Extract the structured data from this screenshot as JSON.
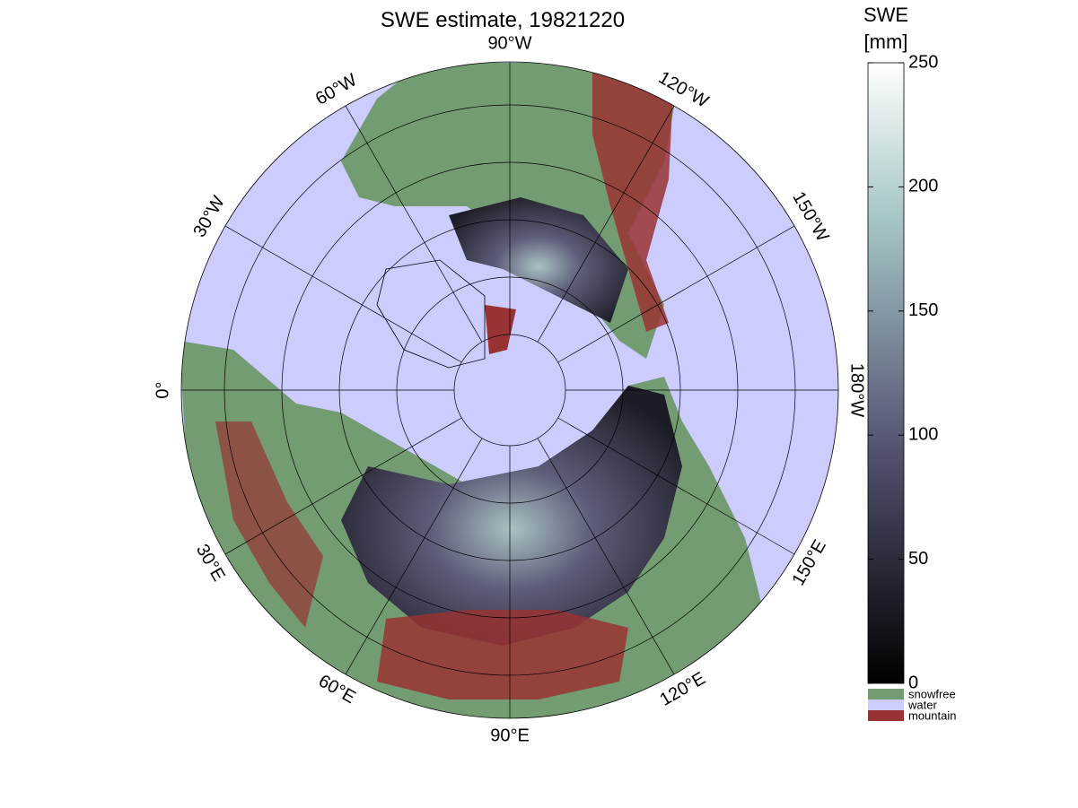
{
  "title": "SWE estimate, 19821220",
  "map": {
    "longitude_labels": [
      "0°",
      "30°W",
      "60°W",
      "90°W",
      "120°W",
      "150°W",
      "180°W",
      "150°E",
      "120°E",
      "90°E",
      "60°E",
      "30°E"
    ]
  },
  "colorbar": {
    "label": [
      "SWE",
      "[mm]"
    ],
    "lim": [
      0,
      250
    ],
    "ticks": [
      0,
      50,
      100,
      150,
      200,
      250
    ]
  },
  "legend": [
    {
      "name": "snowfree",
      "color": "#739c73"
    },
    {
      "name": "water",
      "color": "#ccccff"
    },
    {
      "name": "mountain",
      "color": "#993333"
    }
  ]
}
